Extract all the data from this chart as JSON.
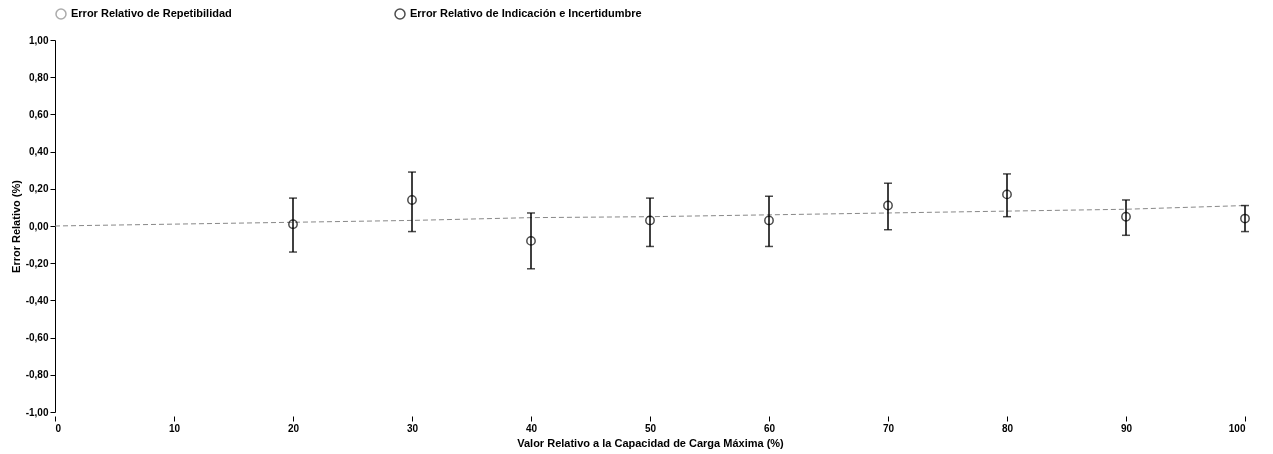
{
  "chart_data": {
    "type": "scatter",
    "xlabel": "Valor Relativo a la Capacidad de Carga Máxima (%)",
    "ylabel": "Error Relativo (%)",
    "xlim": [
      0,
      100
    ],
    "xticks": [
      0,
      10,
      20,
      30,
      40,
      50,
      60,
      70,
      80,
      90,
      100
    ],
    "ylim": [
      -1,
      1
    ],
    "yticks": [
      {
        "value": -1,
        "label": "-1,00"
      },
      {
        "value": -0.8,
        "label": "-0,80"
      },
      {
        "value": -0.6,
        "label": "-0,60"
      },
      {
        "value": -0.4,
        "label": "-0,40"
      },
      {
        "value": -0.2,
        "label": "-0,20"
      },
      {
        "value": 0,
        "label": "0,00"
      },
      {
        "value": 0.2,
        "label": "0,20"
      },
      {
        "value": 0.4,
        "label": "0,40"
      },
      {
        "value": 0.6,
        "label": "0,60"
      },
      {
        "value": 0.8,
        "label": "0,80"
      },
      {
        "value": 1,
        "label": "1,00"
      }
    ],
    "grid": false,
    "legend": "top",
    "series": [
      {
        "name": "Error Relativo de Repetibilidad",
        "type": "line",
        "color": "#888888",
        "line_style": "dashed",
        "marker": "none",
        "x": [
          0,
          10,
          20,
          30,
          40,
          50,
          60,
          70,
          80,
          90,
          100
        ],
        "values": [
          0,
          0.01,
          0.02,
          0.03,
          0.045,
          0.05,
          0.06,
          0.07,
          0.08,
          0.09,
          0.11
        ]
      },
      {
        "name": "Error Relativo de Indicación e Incertidumbre",
        "color": "#000000",
        "marker": "circle",
        "x": [
          20,
          30,
          40,
          50,
          60,
          70,
          80,
          90,
          100
        ],
        "values": [
          0.01,
          0.14,
          -0.08,
          0.03,
          0.03,
          0.11,
          0.17,
          0.05,
          0.04
        ],
        "errors": [
          [
            -0.14,
            0.15
          ],
          [
            -0.03,
            0.29
          ],
          [
            -0.23,
            0.07
          ],
          [
            -0.11,
            0.15
          ],
          [
            -0.11,
            0.16
          ],
          [
            -0.02,
            0.23
          ],
          [
            0.05,
            0.28
          ],
          [
            -0.05,
            0.14
          ],
          [
            -0.03,
            0.11
          ]
        ]
      }
    ]
  }
}
